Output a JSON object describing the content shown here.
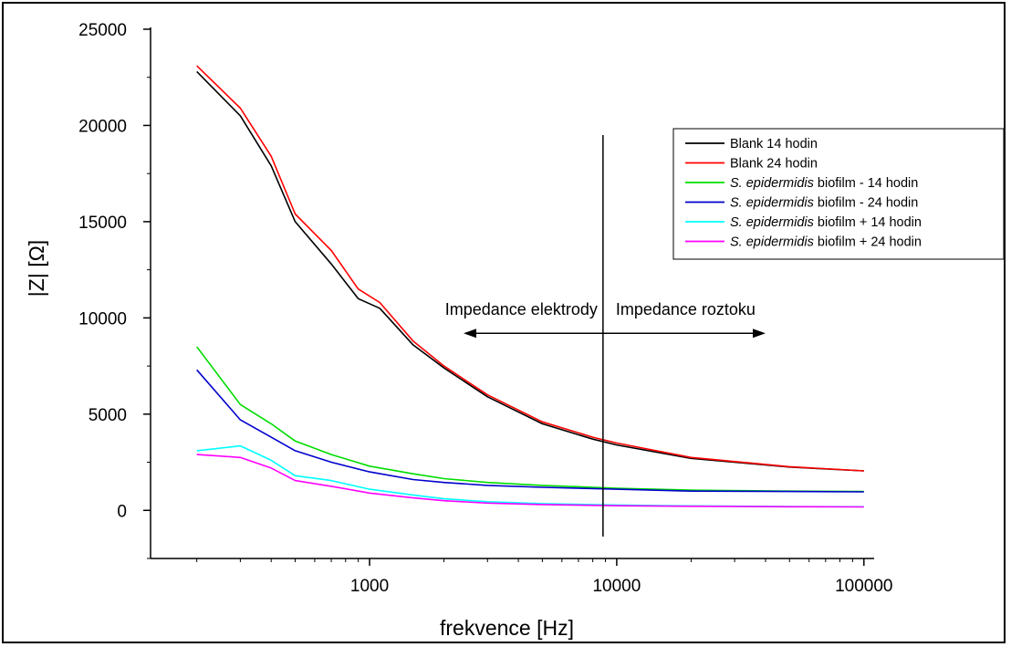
{
  "chart_data": {
    "type": "line",
    "xlabel": "frekvence [Hz]",
    "ylabel": "|Z| [Ω]",
    "x_scale": "log",
    "xlim": [
      130,
      110000
    ],
    "ylim": [
      -2500,
      25000
    ],
    "x_ticks": [
      {
        "value": 1000,
        "label": "1000"
      },
      {
        "value": 10000,
        "label": "10000"
      },
      {
        "value": 100000,
        "label": "100000"
      }
    ],
    "y_ticks": [
      {
        "value": 0,
        "label": "0"
      },
      {
        "value": 5000,
        "label": "5000"
      },
      {
        "value": 10000,
        "label": "10000"
      },
      {
        "value": 15000,
        "label": "15000"
      },
      {
        "value": 20000,
        "label": "20000"
      },
      {
        "value": 25000,
        "label": "25000"
      }
    ],
    "grid": false,
    "legend_position": "top-right",
    "series": [
      {
        "name": "Blank 14 hodin",
        "color": "#000000",
        "x": [
          200,
          300,
          400,
          500,
          700,
          900,
          1100,
          1500,
          2000,
          3000,
          5000,
          8000,
          10000,
          20000,
          50000,
          100000
        ],
        "y": [
          22800,
          20500,
          17900,
          15000,
          12800,
          11000,
          10500,
          8600,
          7400,
          5900,
          4500,
          3700,
          3400,
          2700,
          2250,
          2050
        ]
      },
      {
        "name": "Blank 24 hodin",
        "color": "#ff0000",
        "x": [
          200,
          300,
          400,
          500,
          700,
          900,
          1100,
          1500,
          2000,
          3000,
          5000,
          8000,
          10000,
          20000,
          50000,
          100000
        ],
        "y": [
          23100,
          20900,
          18400,
          15400,
          13500,
          11500,
          10800,
          8800,
          7500,
          6000,
          4600,
          3800,
          3500,
          2750,
          2270,
          2050
        ]
      },
      {
        "name": "S. epidermidis biofilm - 14 hodin",
        "color": "#00dd00",
        "x": [
          200,
          300,
          400,
          500,
          700,
          1000,
          1500,
          2000,
          3000,
          5000,
          10000,
          20000,
          50000,
          100000
        ],
        "y": [
          8500,
          5500,
          4500,
          3600,
          2900,
          2300,
          1900,
          1650,
          1450,
          1300,
          1150,
          1050,
          1000,
          980
        ]
      },
      {
        "name": "S. epidermidis biofilm - 24 hodin",
        "color": "#0000cc",
        "x": [
          200,
          300,
          400,
          500,
          700,
          1000,
          1500,
          2000,
          3000,
          5000,
          10000,
          20000,
          50000,
          100000
        ],
        "y": [
          7300,
          4700,
          3800,
          3100,
          2500,
          2000,
          1600,
          1450,
          1300,
          1200,
          1100,
          1000,
          980,
          960
        ]
      },
      {
        "name": "S. epidermidis biofilm + 14 hodin",
        "color": "#00ffff",
        "x": [
          200,
          300,
          400,
          500,
          700,
          1000,
          1500,
          2000,
          3000,
          5000,
          10000,
          20000,
          50000,
          100000
        ],
        "y": [
          3100,
          3350,
          2600,
          1800,
          1550,
          1100,
          800,
          600,
          450,
          350,
          280,
          230,
          200,
          190
        ]
      },
      {
        "name": "S. epidermidis biofilm + 24 hodin",
        "color": "#ff00ff",
        "x": [
          200,
          300,
          400,
          500,
          700,
          1000,
          1500,
          2000,
          3000,
          5000,
          10000,
          20000,
          50000,
          100000
        ],
        "y": [
          2900,
          2750,
          2200,
          1550,
          1250,
          900,
          650,
          500,
          380,
          300,
          240,
          210,
          190,
          180
        ]
      }
    ],
    "legend_entries": [
      {
        "pre": "",
        "italic": "",
        "post": "Blank 14 hodin"
      },
      {
        "pre": "",
        "italic": "",
        "post": "Blank 24 hodin"
      },
      {
        "pre": "",
        "italic": "S. epidermidis",
        "post": " biofilm - 14 hodin"
      },
      {
        "pre": "",
        "italic": "S. epidermidis",
        "post": " biofilm - 24 hodin"
      },
      {
        "pre": "",
        "italic": "S. epidermidis",
        "post": " biofilm + 14 hodin"
      },
      {
        "pre": "",
        "italic": "S. epidermidis",
        "post": " biofilm + 24 hodin"
      }
    ],
    "vertical_line_x": 8800,
    "annotations": {
      "left_label": "Impedance elektrody",
      "right_label": "Impedance roztoku",
      "arrow_y": 9200,
      "arrow_left_x": 2400,
      "arrow_right_x": 40000
    }
  }
}
